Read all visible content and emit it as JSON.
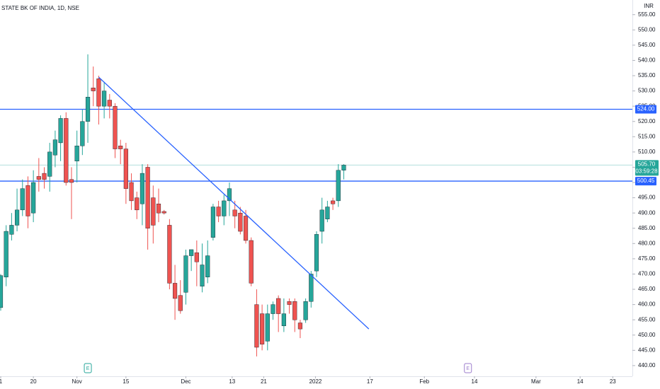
{
  "chart_data": {
    "type": "candlestick",
    "title": "STATE BK OF INDIA, 1D, NSE",
    "currency": "INR",
    "x": [
      0,
      1,
      2,
      3,
      4,
      5,
      6,
      7,
      8,
      9,
      10,
      11,
      12,
      13,
      14,
      15,
      16,
      17,
      18,
      19,
      20,
      21,
      22,
      23,
      24,
      25,
      26,
      27,
      28,
      29,
      30,
      31,
      32,
      33,
      34,
      35,
      36,
      37,
      38,
      39,
      40,
      41,
      42,
      43,
      44,
      45,
      46,
      47,
      48,
      49,
      50,
      51,
      52,
      53,
      54,
      55,
      56,
      57,
      58,
      59,
      60,
      61,
      62,
      63
    ],
    "open": [
      459,
      469,
      483,
      486,
      491,
      499,
      490,
      502,
      503,
      502,
      509,
      513,
      521,
      501,
      507,
      512,
      520,
      531,
      534,
      525,
      527,
      525,
      512,
      511,
      500,
      495,
      493,
      505,
      495,
      493,
      490.5,
      486,
      467,
      463,
      464,
      476,
      477,
      466,
      469,
      482,
      492,
      489,
      494,
      491,
      490,
      489,
      481,
      460,
      457,
      448,
      457,
      462,
      453,
      461,
      461,
      454,
      455,
      461,
      471,
      484,
      488,
      494,
      494,
      504
    ],
    "high": [
      470,
      486,
      490,
      498,
      501,
      502,
      504,
      508,
      505,
      513,
      517,
      522,
      523,
      505,
      517,
      524,
      542,
      538,
      535,
      533,
      529,
      526,
      514,
      513,
      503,
      497,
      506,
      506,
      499,
      498,
      491,
      488,
      473,
      468,
      478,
      478,
      481,
      480,
      481,
      493,
      494,
      496,
      500,
      494,
      492,
      491,
      482,
      465,
      460,
      460,
      461,
      463,
      462,
      462,
      462,
      455,
      462,
      471,
      484,
      495,
      494,
      495,
      506,
      506
    ],
    "low": [
      458,
      466,
      481,
      484,
      489,
      485,
      487,
      497,
      498,
      497,
      505,
      507,
      499,
      488,
      500,
      509,
      513,
      525,
      519,
      521,
      521,
      508,
      506,
      493,
      491,
      488,
      486,
      478,
      480,
      487,
      489.5,
      465,
      455,
      457,
      460,
      471,
      466,
      464,
      467,
      481,
      487,
      486,
      489,
      485,
      483,
      480,
      466,
      443,
      445,
      445,
      455,
      451,
      451,
      457,
      451,
      449,
      454,
      459,
      469,
      480,
      487,
      491,
      492,
      501
    ],
    "close": [
      469.5,
      484,
      486,
      491,
      498,
      489,
      500,
      501,
      501,
      510,
      514,
      521,
      500,
      500,
      512,
      520,
      528,
      530,
      525,
      530,
      525,
      511,
      511,
      498,
      494,
      491,
      503,
      485,
      486,
      490,
      490,
      467,
      462,
      458,
      476,
      478,
      474,
      473,
      476,
      492,
      489,
      494,
      498,
      489,
      484,
      481,
      467,
      446,
      447,
      457,
      460,
      457,
      457,
      460,
      455,
      452,
      461,
      470,
      483,
      491,
      492,
      493,
      504,
      505.7
    ],
    "up_color": "#26a69a",
    "down_color": "#ef5350",
    "xlim": [
      0,
      116
    ],
    "xticks": [
      {
        "value": 0,
        "label": "1"
      },
      {
        "value": 6,
        "label": "20"
      },
      {
        "value": 14,
        "label": "Nov"
      },
      {
        "value": 23,
        "label": "15"
      },
      {
        "value": 34,
        "label": "Dec"
      },
      {
        "value": 42.5,
        "label": "13"
      },
      {
        "value": 48.3,
        "label": "21"
      },
      {
        "value": 57.8,
        "label": "2022"
      },
      {
        "value": 67.8,
        "label": "17"
      },
      {
        "value": 77.8,
        "label": "Feb"
      },
      {
        "value": 87,
        "label": "14"
      },
      {
        "value": 98.3,
        "label": "Mar"
      },
      {
        "value": 106.4,
        "label": "14"
      },
      {
        "value": 112.4,
        "label": "23"
      }
    ],
    "ylim": [
      436.5,
      559.8
    ],
    "yticks": [
      {
        "value": 440,
        "label": "440.00"
      },
      {
        "value": 445,
        "label": "445.00"
      },
      {
        "value": 450,
        "label": "450.00"
      },
      {
        "value": 455,
        "label": "455.00"
      },
      {
        "value": 460,
        "label": "460.00"
      },
      {
        "value": 465,
        "label": "465.00"
      },
      {
        "value": 470,
        "label": "470.00"
      },
      {
        "value": 475,
        "label": "475.00"
      },
      {
        "value": 480,
        "label": "480.00"
      },
      {
        "value": 485,
        "label": "485.00"
      },
      {
        "value": 490,
        "label": "490.00"
      },
      {
        "value": 495,
        "label": "495.00"
      },
      {
        "value": 500,
        "label": "500.00"
      },
      {
        "value": 505,
        "label": "505.00"
      },
      {
        "value": 510,
        "label": "510.00"
      },
      {
        "value": 515,
        "label": "515.00"
      },
      {
        "value": 520,
        "label": "520.00"
      },
      {
        "value": 525,
        "label": "525.00"
      },
      {
        "value": 530,
        "label": "530.00"
      },
      {
        "value": 535,
        "label": "535.00"
      },
      {
        "value": 540,
        "label": "540.00"
      },
      {
        "value": 545,
        "label": "545.00"
      },
      {
        "value": 550,
        "label": "550.00"
      },
      {
        "value": 555,
        "label": "555.00"
      }
    ],
    "hlines": [
      {
        "value": 524,
        "label": "524.00",
        "color": "#2962ff"
      },
      {
        "value": 500.45,
        "label": "500.45",
        "color": "#2962ff"
      }
    ],
    "trendline": {
      "x": [
        18,
        67.6
      ],
      "y": [
        534.5,
        452
      ],
      "color": "#2962ff"
    },
    "last_price": {
      "value": 505.7,
      "label": "505.70",
      "countdown": "03:59:28",
      "color": "#26a69a"
    },
    "events": [
      {
        "x": 16,
        "label": "E"
      },
      {
        "x": 85.8,
        "label": "E"
      }
    ]
  }
}
